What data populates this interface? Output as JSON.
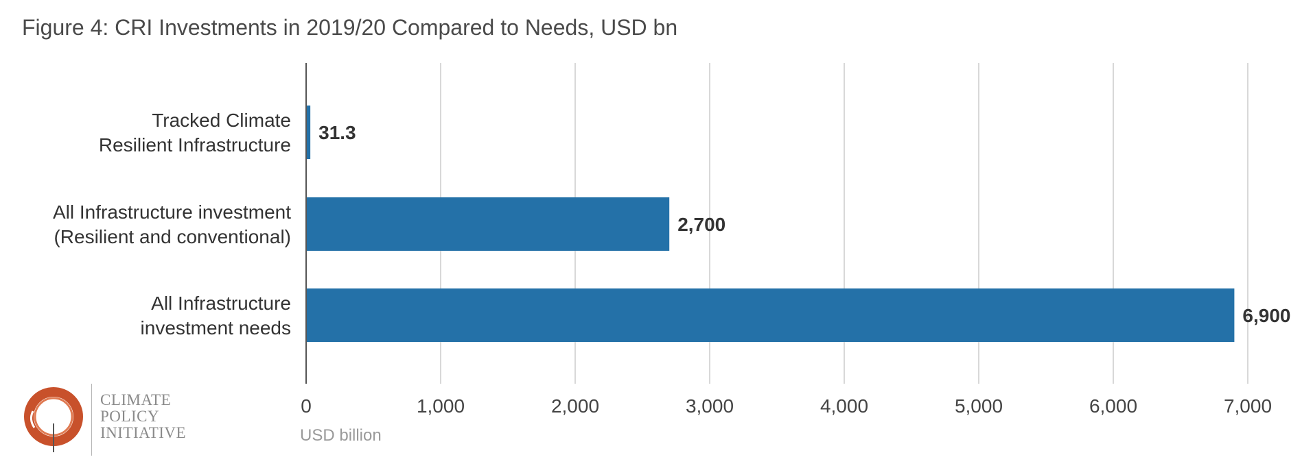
{
  "title": "Figure 4: CRI Investments in 2019/20 Compared to Needs, USD bn",
  "logo": {
    "lines": [
      "CLIMATE",
      "POLICY",
      "INITIATIVE"
    ],
    "color": "#c8512b"
  },
  "colors": {
    "bar": "#2471a8",
    "grid": "#cccccc",
    "axis": "#555555",
    "xlabel": "#9a9a9a"
  },
  "chart_data": {
    "type": "bar",
    "orientation": "horizontal",
    "categories": [
      [
        "Tracked Climate",
        "Resilient Infrastructure"
      ],
      [
        "All Infrastructure investment",
        "(Resilient and conventional)"
      ],
      [
        "All Infrastructure",
        "investment needs"
      ]
    ],
    "values": [
      31.3,
      2700,
      6900
    ],
    "data_labels": [
      "31.3",
      "2,700",
      "6,900"
    ],
    "xlabel": "USD billion",
    "ylabel": "",
    "xlim": [
      0,
      7000
    ],
    "ticks": [
      0,
      1000,
      2000,
      3000,
      4000,
      5000,
      6000,
      7000
    ],
    "tick_labels": [
      "0",
      "1,000",
      "2,000",
      "3,000",
      "4,000",
      "5,000",
      "6,000",
      "7,000"
    ],
    "grid": true,
    "legend": "none"
  }
}
